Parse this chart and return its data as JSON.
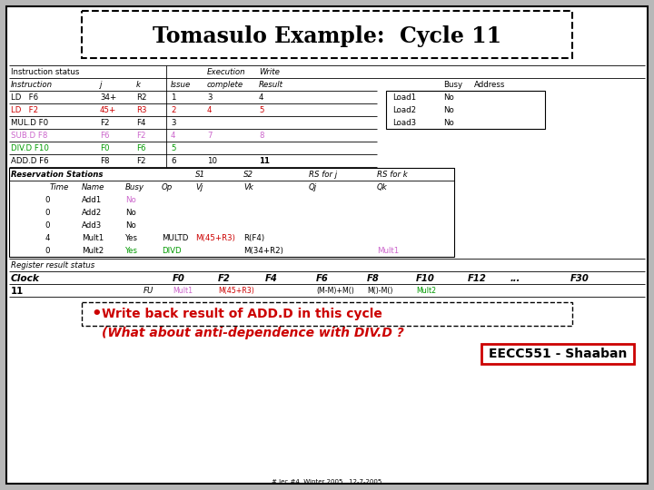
{
  "title": "Tomasulo Example:  Cycle 11",
  "instructions": [
    {
      "text": "LD   F6",
      "j": "34+",
      "k": "R2",
      "issue": "1",
      "exec": "3",
      "result": "4",
      "j_color": "black",
      "k_color": "black",
      "instr_color": "black",
      "result_bold": false
    },
    {
      "text": "LD   F2",
      "j": "45+",
      "k": "R3",
      "issue": "2",
      "exec": "4",
      "result": "5",
      "j_color": "#cc0000",
      "k_color": "#cc0000",
      "instr_color": "#cc0000",
      "result_bold": false
    },
    {
      "text": "MUL.D F0",
      "j": "F2",
      "k": "F4",
      "issue": "3",
      "exec": "",
      "result": "",
      "j_color": "black",
      "k_color": "black",
      "instr_color": "black",
      "result_bold": false
    },
    {
      "text": "SUB.D F8",
      "j": "F6",
      "k": "F2",
      "issue": "4",
      "exec": "7",
      "result": "8",
      "j_color": "#cc66cc",
      "k_color": "#cc66cc",
      "instr_color": "#cc66cc",
      "result_bold": false
    },
    {
      "text": "DIV.D F10",
      "j": "F0",
      "k": "F6",
      "issue": "5",
      "exec": "",
      "result": "",
      "j_color": "#009900",
      "k_color": "#009900",
      "instr_color": "#009900",
      "result_bold": false
    },
    {
      "text": "ADD.D F6",
      "j": "F8",
      "k": "F2",
      "issue": "6",
      "exec": "10",
      "result": "11",
      "j_color": "black",
      "k_color": "black",
      "instr_color": "black",
      "result_bold": true
    }
  ],
  "load_stations": [
    {
      "name": "Load1",
      "busy": "No"
    },
    {
      "name": "Load2",
      "busy": "No"
    },
    {
      "name": "Load3",
      "busy": "No"
    }
  ],
  "reservation_stations": [
    {
      "time": "0",
      "name": "Add1",
      "busy": "No",
      "busy_color": "#cc66cc",
      "op": "",
      "op_color": "black",
      "vj": "",
      "vj_color": "black",
      "vk": "",
      "vk_color": "black",
      "qj": "",
      "qk": "",
      "qk_color": "black"
    },
    {
      "time": "0",
      "name": "Add2",
      "busy": "No",
      "busy_color": "black",
      "op": "",
      "op_color": "black",
      "vj": "",
      "vj_color": "black",
      "vk": "",
      "vk_color": "black",
      "qj": "",
      "qk": "",
      "qk_color": "black"
    },
    {
      "time": "0",
      "name": "Add3",
      "busy": "No",
      "busy_color": "black",
      "op": "",
      "op_color": "black",
      "vj": "",
      "vj_color": "black",
      "vk": "",
      "vk_color": "black",
      "qj": "",
      "qk": "",
      "qk_color": "black"
    },
    {
      "time": "4",
      "name": "Mult1",
      "busy": "Yes",
      "busy_color": "black",
      "op": "MULTD",
      "op_color": "black",
      "vj": "M(45+R3)",
      "vj_color": "#cc0000",
      "vk": "R(F4)",
      "vk_color": "black",
      "qj": "",
      "qk": "",
      "qk_color": "black"
    },
    {
      "time": "0",
      "name": "Mult2",
      "busy": "Yes",
      "busy_color": "#009900",
      "op": "DIVD",
      "op_color": "#009900",
      "vj": "",
      "vj_color": "black",
      "vk": "M(34+R2)",
      "vk_color": "black",
      "qj": "",
      "qk": "Mult1",
      "qk_color": "#cc66cc"
    }
  ],
  "clock_registers": [
    "F0",
    "F2",
    "F4",
    "F6",
    "F8",
    "F10",
    "F12",
    "...",
    "F30"
  ],
  "clock_11_values": [
    {
      "val": "Mult1",
      "color": "#cc66cc"
    },
    {
      "val": "M(45+R3)",
      "color": "#cc0000"
    },
    {
      "val": "",
      "color": "black"
    },
    {
      "val": "(M-M)+M()",
      "color": "black"
    },
    {
      "val": "M()-M()",
      "color": "black"
    },
    {
      "val": "Mult2",
      "color": "#009900"
    },
    {
      "val": "",
      "color": "black"
    },
    {
      "val": "",
      "color": "black"
    },
    {
      "val": "",
      "color": "black"
    }
  ],
  "bullet_text1": "Write back result of ADD.D in this cycle",
  "bullet_text2": "(What about anti-dependence with DIV.D ?",
  "footer_text1": "EECC551 - Shaaban",
  "footer_text2": "# lec #4  Winter 2005   12-7-2005"
}
